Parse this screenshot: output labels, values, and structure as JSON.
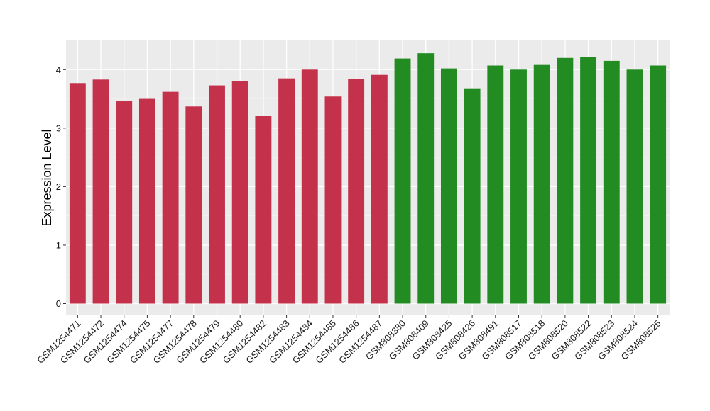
{
  "chart_data": {
    "type": "bar",
    "title": "",
    "xlabel": "",
    "ylabel": "Expression Level",
    "ylim": [
      -0.2,
      4.5
    ],
    "yticks": [
      0,
      1,
      2,
      3,
      4
    ],
    "grid": true,
    "legend": "none",
    "colors": {
      "group_a": "#C4314B",
      "group_b": "#228B22",
      "panel_background": "#EBEBEB",
      "grid_major": "#FFFFFF",
      "grid_minor": "#F4F4F4"
    },
    "categories": [
      "GSM1254471",
      "GSM1254472",
      "GSM1254474",
      "GSM1254475",
      "GSM1254477",
      "GSM1254478",
      "GSM1254479",
      "GSM1254480",
      "GSM1254482",
      "GSM1254483",
      "GSM1254484",
      "GSM1254485",
      "GSM1254486",
      "GSM1254487",
      "GSM808380",
      "GSM808409",
      "GSM808425",
      "GSM808426",
      "GSM808491",
      "GSM808517",
      "GSM808518",
      "GSM808520",
      "GSM808522",
      "GSM808523",
      "GSM808524",
      "GSM808525"
    ],
    "values": [
      3.77,
      3.83,
      3.47,
      3.5,
      3.62,
      3.37,
      3.73,
      3.8,
      3.21,
      3.85,
      4.0,
      3.54,
      3.84,
      3.91,
      4.19,
      4.28,
      4.02,
      3.68,
      4.07,
      4.0,
      4.08,
      4.2,
      4.22,
      4.15,
      4.0,
      4.07
    ],
    "groups": [
      "group_a",
      "group_a",
      "group_a",
      "group_a",
      "group_a",
      "group_a",
      "group_a",
      "group_a",
      "group_a",
      "group_a",
      "group_a",
      "group_a",
      "group_a",
      "group_a",
      "group_b",
      "group_b",
      "group_b",
      "group_b",
      "group_b",
      "group_b",
      "group_b",
      "group_b",
      "group_b",
      "group_b",
      "group_b",
      "group_b"
    ]
  }
}
